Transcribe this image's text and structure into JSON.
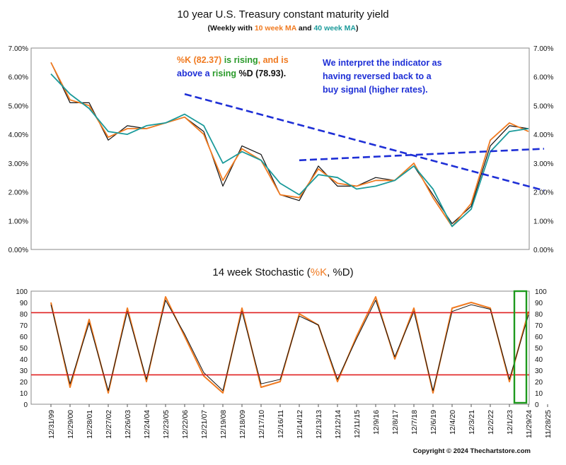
{
  "chart_data": [
    {
      "type": "line",
      "title": "10 year U.S. Treasury constant maturity yield",
      "subtitle": {
        "prefix": "(Weekly with ",
        "ma10": "10 week MA",
        "mid": " and ",
        "ma40": "40 week MA",
        "suffix": ")"
      },
      "yticks": [
        "0.00%",
        "1.00%",
        "2.00%",
        "3.00%",
        "4.00%",
        "5.00%",
        "6.00%",
        "7.00%"
      ],
      "ylim": [
        0,
        7
      ],
      "series": [
        {
          "color": "#111111",
          "x": [
            "12/31/99",
            "12/29/00",
            "12/28/01",
            "12/27/02",
            "12/26/03",
            "12/24/04",
            "12/23/05",
            "12/22/06",
            "12/21/07",
            "12/19/08",
            "12/18/09",
            "12/17/10",
            "12/16/11",
            "12/14/12",
            "12/13/13",
            "12/12/14",
            "12/11/15",
            "12/9/16",
            "12/8/17",
            "12/7/18",
            "12/6/19",
            "12/4/20",
            "12/3/21",
            "12/2/22",
            "12/1/23",
            "11/29/24"
          ],
          "values": [
            6.5,
            5.1,
            5.1,
            3.8,
            4.3,
            4.2,
            4.4,
            4.6,
            4.1,
            2.2,
            3.6,
            3.3,
            1.9,
            1.7,
            2.9,
            2.2,
            2.2,
            2.5,
            2.4,
            2.9,
            1.9,
            0.9,
            1.5,
            3.6,
            4.3,
            4.2
          ]
        },
        {
          "name": "10 week MA",
          "color": "#f07a20",
          "x": [
            "12/31/99",
            "12/29/00",
            "12/28/01",
            "12/27/02",
            "12/26/03",
            "12/24/04",
            "12/23/05",
            "12/22/06",
            "12/21/07",
            "12/19/08",
            "12/18/09",
            "12/17/10",
            "12/16/11",
            "12/14/12",
            "12/13/13",
            "12/12/14",
            "12/11/15",
            "12/9/16",
            "12/8/17",
            "12/7/18",
            "12/6/19",
            "12/4/20",
            "12/3/21",
            "12/2/22",
            "12/1/23",
            "11/29/24"
          ],
          "values": [
            6.5,
            5.2,
            5.0,
            3.9,
            4.2,
            4.2,
            4.4,
            4.6,
            4.0,
            2.4,
            3.5,
            3.1,
            1.9,
            1.8,
            2.8,
            2.3,
            2.2,
            2.4,
            2.4,
            3.0,
            1.8,
            0.8,
            1.6,
            3.8,
            4.4,
            4.1
          ]
        },
        {
          "name": "40 week MA",
          "color": "#1a9a9a",
          "x": [
            "12/31/99",
            "12/29/00",
            "12/28/01",
            "12/27/02",
            "12/26/03",
            "12/24/04",
            "12/23/05",
            "12/22/06",
            "12/21/07",
            "12/19/08",
            "12/18/09",
            "12/17/10",
            "12/16/11",
            "12/14/12",
            "12/13/13",
            "12/12/14",
            "12/11/15",
            "12/9/16",
            "12/8/17",
            "12/7/18",
            "12/6/19",
            "12/4/20",
            "12/3/21",
            "12/2/22",
            "12/1/23",
            "11/29/24"
          ],
          "values": [
            6.1,
            5.4,
            4.9,
            4.1,
            4.0,
            4.3,
            4.4,
            4.7,
            4.3,
            3.0,
            3.4,
            3.1,
            2.3,
            1.9,
            2.6,
            2.5,
            2.1,
            2.2,
            2.4,
            2.9,
            2.1,
            0.8,
            1.4,
            3.4,
            4.1,
            4.2
          ]
        }
      ],
      "trendlines": [
        {
          "color": "#1e2fd6",
          "from": {
            "x": "12/22/06",
            "y": 5.4
          },
          "to": {
            "x": "11/29/24",
            "y": 2.05
          }
        },
        {
          "color": "#1e2fd6",
          "from": {
            "x": "12/14/12",
            "y": 3.1
          },
          "to": {
            "x": "11/29/24",
            "y": 3.5
          }
        }
      ],
      "annotations": [
        {
          "runs": [
            {
              "text": "%K (82.37) ",
              "color": "#f07a20"
            },
            {
              "text": "is rising",
              "color": "#2a9a2a"
            },
            {
              "text": ", and is",
              "color": "#f07a20"
            }
          ]
        },
        {
          "runs": [
            {
              "text": "above a ",
              "color": "#1e2fd6"
            },
            {
              "text": "rising ",
              "color": "#2a9a2a"
            },
            {
              "text": "%D (78.93).",
              "color": "#111111"
            }
          ]
        },
        {
          "runs": [
            {
              "text": "We interpret the indicator as",
              "color": "#1e2fd6"
            }
          ]
        },
        {
          "runs": [
            {
              "text": "having reversed back to a",
              "color": "#1e2fd6"
            }
          ]
        },
        {
          "runs": [
            {
              "text": "buy signal (higher rates).",
              "color": "#1e2fd6"
            }
          ]
        }
      ]
    },
    {
      "type": "line",
      "title": {
        "prefix": "14 week Stochastic (",
        "k": "%K",
        "sep": ", ",
        "d": "%D",
        "suffix": ")"
      },
      "yticks": [
        "0",
        "10",
        "20",
        "30",
        "40",
        "50",
        "60",
        "70",
        "80",
        "90",
        "100"
      ],
      "ylim": [
        0,
        100
      ],
      "reference_lines": [
        {
          "value": 81,
          "color": "#e02020"
        },
        {
          "value": 26,
          "color": "#e02020"
        }
      ],
      "highlight_box": {
        "from_x": "11/29/24",
        "color": "#1e9a1e"
      },
      "series": [
        {
          "name": "%K",
          "color": "#f07a20",
          "x": [
            "12/31/99",
            "12/29/00",
            "12/28/01",
            "12/27/02",
            "12/26/03",
            "12/24/04",
            "12/23/05",
            "12/22/06",
            "12/21/07",
            "12/19/08",
            "12/18/09",
            "12/17/10",
            "12/16/11",
            "12/14/12",
            "12/13/13",
            "12/12/14",
            "12/11/15",
            "12/9/16",
            "12/8/17",
            "12/7/18",
            "12/6/19",
            "12/4/20",
            "12/3/21",
            "12/2/22",
            "12/1/23",
            "11/29/24"
          ],
          "values": [
            90,
            15,
            75,
            10,
            85,
            20,
            95,
            60,
            25,
            10,
            85,
            15,
            20,
            80,
            70,
            20,
            60,
            95,
            40,
            85,
            10,
            85,
            90,
            85,
            20,
            82
          ]
        },
        {
          "name": "%D",
          "color": "#111111",
          "x": [
            "12/31/99",
            "12/29/00",
            "12/28/01",
            "12/27/02",
            "12/26/03",
            "12/24/04",
            "12/23/05",
            "12/22/06",
            "12/21/07",
            "12/19/08",
            "12/18/09",
            "12/17/10",
            "12/16/11",
            "12/14/12",
            "12/13/13",
            "12/12/14",
            "12/11/15",
            "12/9/16",
            "12/8/17",
            "12/7/18",
            "12/6/19",
            "12/4/20",
            "12/3/21",
            "12/2/22",
            "12/1/23",
            "11/29/24"
          ],
          "values": [
            88,
            18,
            72,
            12,
            82,
            22,
            92,
            62,
            28,
            12,
            82,
            18,
            22,
            78,
            70,
            22,
            58,
            92,
            42,
            82,
            12,
            82,
            88,
            84,
            22,
            79
          ]
        }
      ]
    }
  ],
  "x_axis": {
    "labels": [
      "12/31/99",
      "12/29/00",
      "12/28/01",
      "12/27/02",
      "12/26/03",
      "12/24/04",
      "12/23/05",
      "12/22/06",
      "12/21/07",
      "12/19/08",
      "12/18/09",
      "12/17/10",
      "12/16/11",
      "12/14/12",
      "12/13/13",
      "12/12/14",
      "12/11/15",
      "12/9/16",
      "12/8/17",
      "12/7/18",
      "12/6/19",
      "12/4/20",
      "12/3/21",
      "12/2/22",
      "12/1/23",
      "11/29/24",
      "11/28/25"
    ]
  },
  "copyright": "Copyright © 2024 Thechartstore.com"
}
